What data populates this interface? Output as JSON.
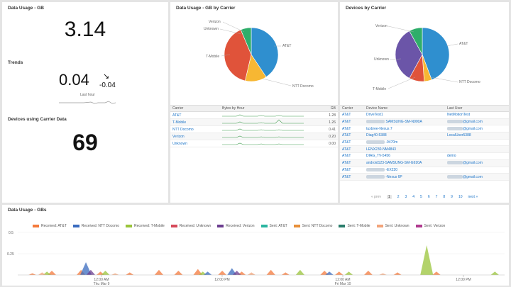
{
  "singles": {
    "data_usage_title": "Data Usage - GB",
    "data_usage_value": "3.14",
    "trends_title": "Trends",
    "trend_value": "0.04",
    "trend_delta": "-0.04",
    "trend_period": "Last hour",
    "devices_title": "Devices using Carrier Data",
    "devices_value": "69"
  },
  "carrier_pie": {
    "title": "Data Usage - GB by Carrier",
    "labels": [
      "Verizon",
      "Unknown",
      "T-Mobile",
      "AT&T",
      "NTT Docomo"
    ]
  },
  "devices_pie": {
    "title": "Devices by Carrier",
    "labels": [
      "Verizon",
      "AT&T",
      "NTT Docomo",
      "T-Mobile",
      "Unknown"
    ]
  },
  "carrier_table": {
    "headers": [
      "Carrier",
      "Bytes by Hour",
      "GB"
    ],
    "rows": [
      {
        "carrier": "AT&T",
        "gb": "1.28"
      },
      {
        "carrier": "T-Mobile",
        "gb": "1.26"
      },
      {
        "carrier": "NTT Docomo",
        "gb": "0.41"
      },
      {
        "carrier": "Verizon",
        "gb": "0.20"
      },
      {
        "carrier": "Unknown",
        "gb": "0.00"
      }
    ]
  },
  "device_table": {
    "headers": [
      "Carrier",
      "Device Name",
      "Last User"
    ],
    "rows": [
      {
        "carrier": "AT&T",
        "device": "DriveTest1",
        "user": "NetMotionTest"
      },
      {
        "carrier": "AT&T",
        "device": "SAMSUNG-SM-N900A",
        "user": "@gmail.com"
      },
      {
        "carrier": "AT&T",
        "device": "tuxbree-Nexus 7",
        "user": "@gmail.com"
      },
      {
        "carrier": "AT&T",
        "device": "Diag40-5388",
        "user": "LocalUser5388"
      },
      {
        "carrier": "AT&T",
        "device": "-9470m",
        "user": ""
      },
      {
        "carrier": "AT&T",
        "device": "LENX230-NM4843",
        "user": ""
      },
      {
        "carrier": "AT&T",
        "device": "DIAG_TV-5456",
        "user": "demo"
      },
      {
        "carrier": "AT&T",
        "device": "android123-SAMSUNG-SM-G920A",
        "user": "@gmail.com"
      },
      {
        "carrier": "AT&T",
        "device": "-EX220",
        "user": ""
      },
      {
        "carrier": "AT&T",
        "device": "-Nexus 6P",
        "user": "@gmail.com"
      }
    ],
    "pager": {
      "prev": "« prev",
      "pages": [
        "1",
        "2",
        "3",
        "4",
        "5",
        "6",
        "7",
        "8",
        "9",
        "10"
      ],
      "next": "next »"
    }
  },
  "area_chart": {
    "title": "Data Usage - GBs",
    "legend": [
      {
        "name": "Received: AT&T",
        "color": "#f47a3c"
      },
      {
        "name": "Received: NTT Docomo",
        "color": "#3a6bbf"
      },
      {
        "name": "Received: T-Mobile",
        "color": "#9ac43a"
      },
      {
        "name": "Received: Unknown",
        "color": "#d64a5a"
      },
      {
        "name": "Received: Verizon",
        "color": "#6b3d8f"
      },
      {
        "name": "Sent: AT&T",
        "color": "#2ab5a0"
      },
      {
        "name": "Sent: NTT Docomo",
        "color": "#e8903a"
      },
      {
        "name": "Sent: T-Mobile",
        "color": "#2a7d6b"
      },
      {
        "name": "Sent: Unknown",
        "color": "#f2a47a"
      },
      {
        "name": "Sent: Verizon",
        "color": "#b03a8f"
      }
    ],
    "y_ticks": [
      "0.5",
      "0.25"
    ],
    "x_ticks": [
      {
        "l1": "12:00 AM",
        "l2": "Thu Mar 9"
      },
      {
        "l1": "12:00 PM",
        "l2": ""
      },
      {
        "l1": "12:00 AM",
        "l2": "Fri Mar 10"
      },
      {
        "l1": "12:00 PM",
        "l2": ""
      }
    ]
  },
  "chart_data": [
    {
      "type": "pie",
      "title": "Data Usage - GB by Carrier",
      "labels": [
        "AT&T",
        "NTT Docomo",
        "T-Mobile",
        "Unknown",
        "Verizon"
      ],
      "values": [
        1.28,
        0.41,
        1.26,
        0.0,
        0.2
      ],
      "colors": [
        "#2f8fcf",
        "#f7b733",
        "#e0533a",
        "#d4d4d4",
        "#2fae6a"
      ]
    },
    {
      "type": "pie",
      "title": "Devices by Carrier",
      "labels": [
        "AT&T",
        "NTT Docomo",
        "T-Mobile",
        "Unknown",
        "Verizon"
      ],
      "values": [
        39,
        4,
        8,
        30,
        7
      ],
      "colors": [
        "#2f8fcf",
        "#f7b733",
        "#e0533a",
        "#6b55a8",
        "#2fae6a"
      ]
    },
    {
      "type": "area",
      "title": "Data Usage - GBs",
      "ylim": [
        0,
        0.5
      ],
      "series": [
        {
          "name": "Received: AT&T",
          "color": "#f47a3c",
          "peaks": [
            [
              0.03,
              0.02
            ],
            [
              0.07,
              0.05
            ],
            [
              0.13,
              0.06
            ],
            [
              0.17,
              0.04
            ],
            [
              0.23,
              0.03
            ],
            [
              0.29,
              0.06
            ],
            [
              0.33,
              0.05
            ],
            [
              0.37,
              0.07
            ],
            [
              0.42,
              0.05
            ],
            [
              0.46,
              0.04
            ],
            [
              0.52,
              0.06
            ],
            [
              0.55,
              0.03
            ],
            [
              0.63,
              0.05
            ],
            [
              0.66,
              0.04
            ],
            [
              0.72,
              0.05
            ],
            [
              0.78,
              0.03
            ],
            [
              0.86,
              0.04
            ]
          ]
        },
        {
          "name": "Received: T-Mobile",
          "color": "#9ac43a",
          "peaks": [
            [
              0.06,
              0.04
            ],
            [
              0.18,
              0.05
            ],
            [
              0.38,
              0.04
            ],
            [
              0.58,
              0.06
            ],
            [
              0.68,
              0.04
            ],
            [
              0.84,
              0.35
            ],
            [
              0.98,
              0.04
            ]
          ]
        },
        {
          "name": "Received: NTT Docomo",
          "color": "#3a6bbf",
          "peaks": [
            [
              0.14,
              0.15
            ],
            [
              0.39,
              0.04
            ],
            [
              0.44,
              0.08
            ],
            [
              0.64,
              0.04
            ]
          ]
        },
        {
          "name": "Received: Verizon",
          "color": "#6b3d8f",
          "peaks": [
            [
              0.15,
              0.06
            ],
            [
              0.45,
              0.05
            ]
          ]
        },
        {
          "name": "Sent: Unknown",
          "color": "#f2a47a",
          "peaks": [
            [
              0.05,
              0.03
            ],
            [
              0.2,
              0.02
            ],
            [
              0.48,
              0.03
            ],
            [
              0.75,
              0.02
            ]
          ]
        }
      ]
    }
  ]
}
